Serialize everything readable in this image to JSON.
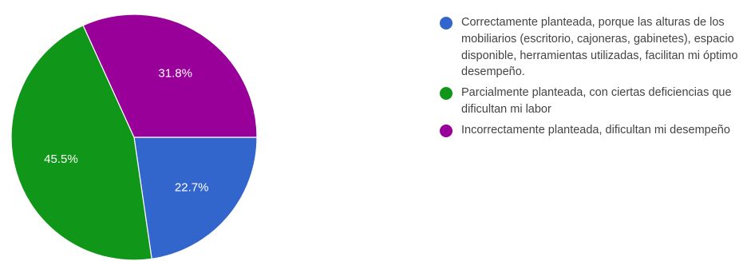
{
  "chart_data": {
    "type": "pie",
    "slices": [
      {
        "label": "Correctamente planteada, porque las alturas de los mobiliarios (escritorio, cajoneras, gabinetes), espacio disponible, herramientas utilizadas, facilitan mi óptimo desempeño.",
        "value": 22.7,
        "display": "22.7%",
        "color": "#3366cc"
      },
      {
        "label": "Parcialmente planteada, con ciertas deficiencias que dificultan mi labor",
        "value": 45.5,
        "display": "45.5%",
        "color": "#109618"
      },
      {
        "label": "Incorrectamente planteada, dificultan mi desempeño",
        "value": 31.8,
        "display": "31.8%",
        "color": "#990099"
      }
    ],
    "start_angle_deg": 90,
    "direction": "clockwise",
    "label_color": "#ffffff",
    "legend_position": "right"
  }
}
